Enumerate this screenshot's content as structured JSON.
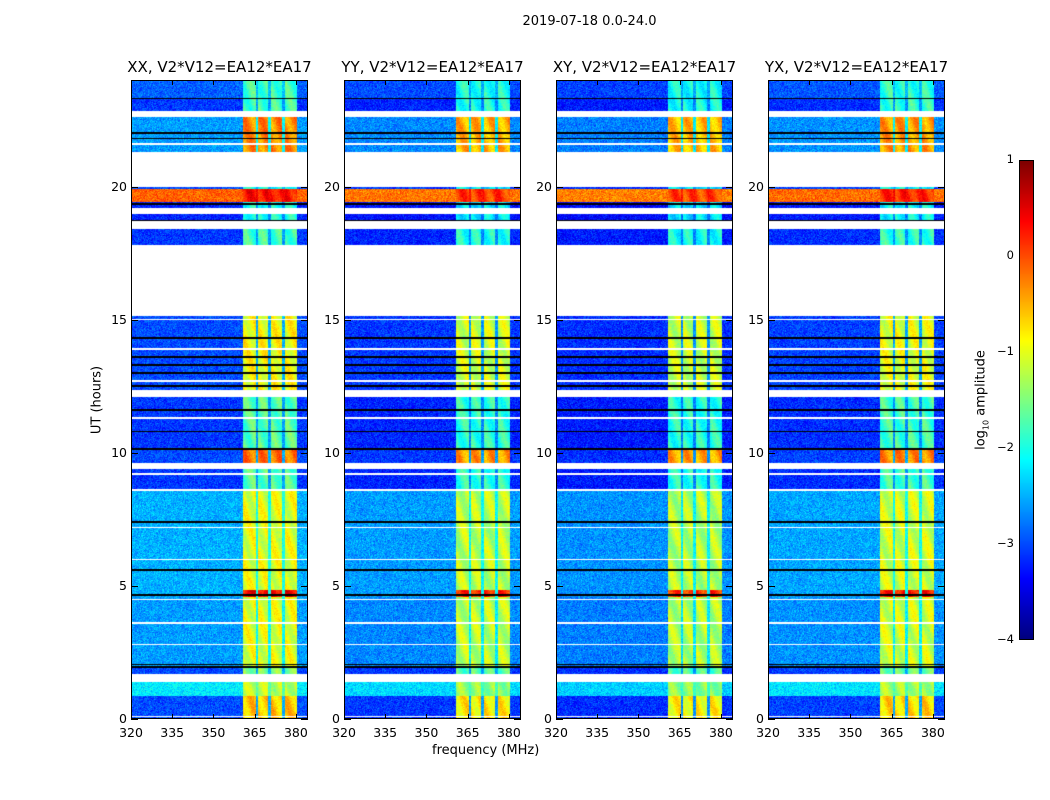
{
  "figure": {
    "title": "2019-07-18 0.0-24.0"
  },
  "chart_data": {
    "type": "heatmap",
    "title": "2019-07-18 0.0-24.0",
    "xlabel": "frequency (MHz)",
    "ylabel": "UT (hours)",
    "xlim": [
      320,
      384.4
    ],
    "ylim": [
      0,
      24
    ],
    "xticks": [
      320,
      335,
      350,
      365,
      380
    ],
    "yticks": [
      0,
      5,
      10,
      15,
      20
    ],
    "colorbar": {
      "label_main": "log",
      "label_sub": "10",
      "label_rest": " amplitude",
      "range": [
        -4,
        1
      ],
      "ticks": [
        1,
        0,
        -1,
        -2,
        -3,
        -4
      ],
      "colormap": "jet"
    },
    "band": {
      "range_mhz": [
        360.7,
        380.4
      ],
      "gaps_mhz": [
        365.8,
        370.5,
        375.6
      ]
    },
    "panels": [
      {
        "title": "XX, V2*V12=EA12*EA17",
        "bg_offset": 0.0,
        "band_offset": 0.0
      },
      {
        "title": "YY, V2*V12=EA12*EA17",
        "bg_offset": -0.1,
        "band_offset": -0.2
      },
      {
        "title": "XY, V2*V12=EA12*EA17",
        "bg_offset": -0.15,
        "band_offset": -0.25
      },
      {
        "title": "YX, V2*V12=EA12*EA17",
        "bg_offset": -0.05,
        "band_offset": -0.1
      }
    ],
    "segments_hours_log10": [
      {
        "t": [
          23.3,
          24.0
        ],
        "bg": -2.9,
        "band": -1.8
      },
      {
        "t": [
          22.85,
          23.3
        ],
        "bg": -3.1,
        "band": -1.8
      },
      {
        "t": [
          22.6,
          22.85
        ],
        "flagged": true
      },
      {
        "t": [
          21.3,
          22.6
        ],
        "bg": -2.6,
        "band": -0.3
      },
      {
        "t": [
          20.0,
          21.3
        ],
        "flagged": true
      },
      {
        "t": [
          19.9,
          20.0
        ],
        "bg": -3.0,
        "band": -2.0
      },
      {
        "t": [
          19.4,
          19.9
        ],
        "bg": -0.1,
        "band": 0.3
      },
      {
        "t": [
          19.2,
          19.4
        ],
        "bg": -3.2,
        "band": -2.0
      },
      {
        "t": [
          18.95,
          19.2
        ],
        "flagged": true
      },
      {
        "t": [
          18.7,
          18.95
        ],
        "bg": -3.2,
        "band": -2.0
      },
      {
        "t": [
          18.4,
          18.7
        ],
        "flagged": true
      },
      {
        "t": [
          17.8,
          18.4
        ],
        "bg": -3.1,
        "band": -1.8
      },
      {
        "t": [
          15.15,
          17.8
        ],
        "flagged": true
      },
      {
        "t": [
          12.35,
          15.15
        ],
        "bg": -3.0,
        "band": -0.9
      },
      {
        "t": [
          12.1,
          12.35
        ],
        "flagged": true
      },
      {
        "t": [
          10.15,
          12.1
        ],
        "bg": -3.1,
        "band": -1.7
      },
      {
        "t": [
          9.6,
          10.15
        ],
        "bg": -3.0,
        "band": -0.2
      },
      {
        "t": [
          9.4,
          9.6
        ],
        "flagged": true
      },
      {
        "t": [
          8.6,
          9.4
        ],
        "bg": -3.1,
        "band": -1.7
      },
      {
        "t": [
          4.85,
          8.6
        ],
        "bg": -2.5,
        "band": -1.0
      },
      {
        "t": [
          4.6,
          4.85
        ],
        "bg": -2.5,
        "band": 0.4
      },
      {
        "t": [
          2.0,
          4.6
        ],
        "bg": -2.6,
        "band": -1.0
      },
      {
        "t": [
          1.7,
          2.0
        ],
        "bg": -3.0,
        "band": -1.5
      },
      {
        "t": [
          1.4,
          1.7
        ],
        "flagged": true
      },
      {
        "t": [
          0.85,
          1.4
        ],
        "bg": -2.2,
        "band": -1.2
      },
      {
        "t": [
          0.0,
          0.85
        ],
        "bg": -3.0,
        "band": -0.6
      }
    ],
    "dark_rows_hours": [
      23.3,
      22.0,
      21.8,
      19.35,
      18.7,
      14.3,
      13.6,
      13.3,
      13.0,
      12.5,
      11.6,
      10.8,
      10.15,
      7.4,
      5.6,
      4.65,
      2.05,
      1.95
    ],
    "flagged_rows_hours": [
      21.6,
      15.0,
      13.9,
      12.7,
      11.3,
      9.2,
      8.6,
      7.2,
      6.0,
      4.5,
      3.6,
      2.8,
      0.1
    ]
  }
}
